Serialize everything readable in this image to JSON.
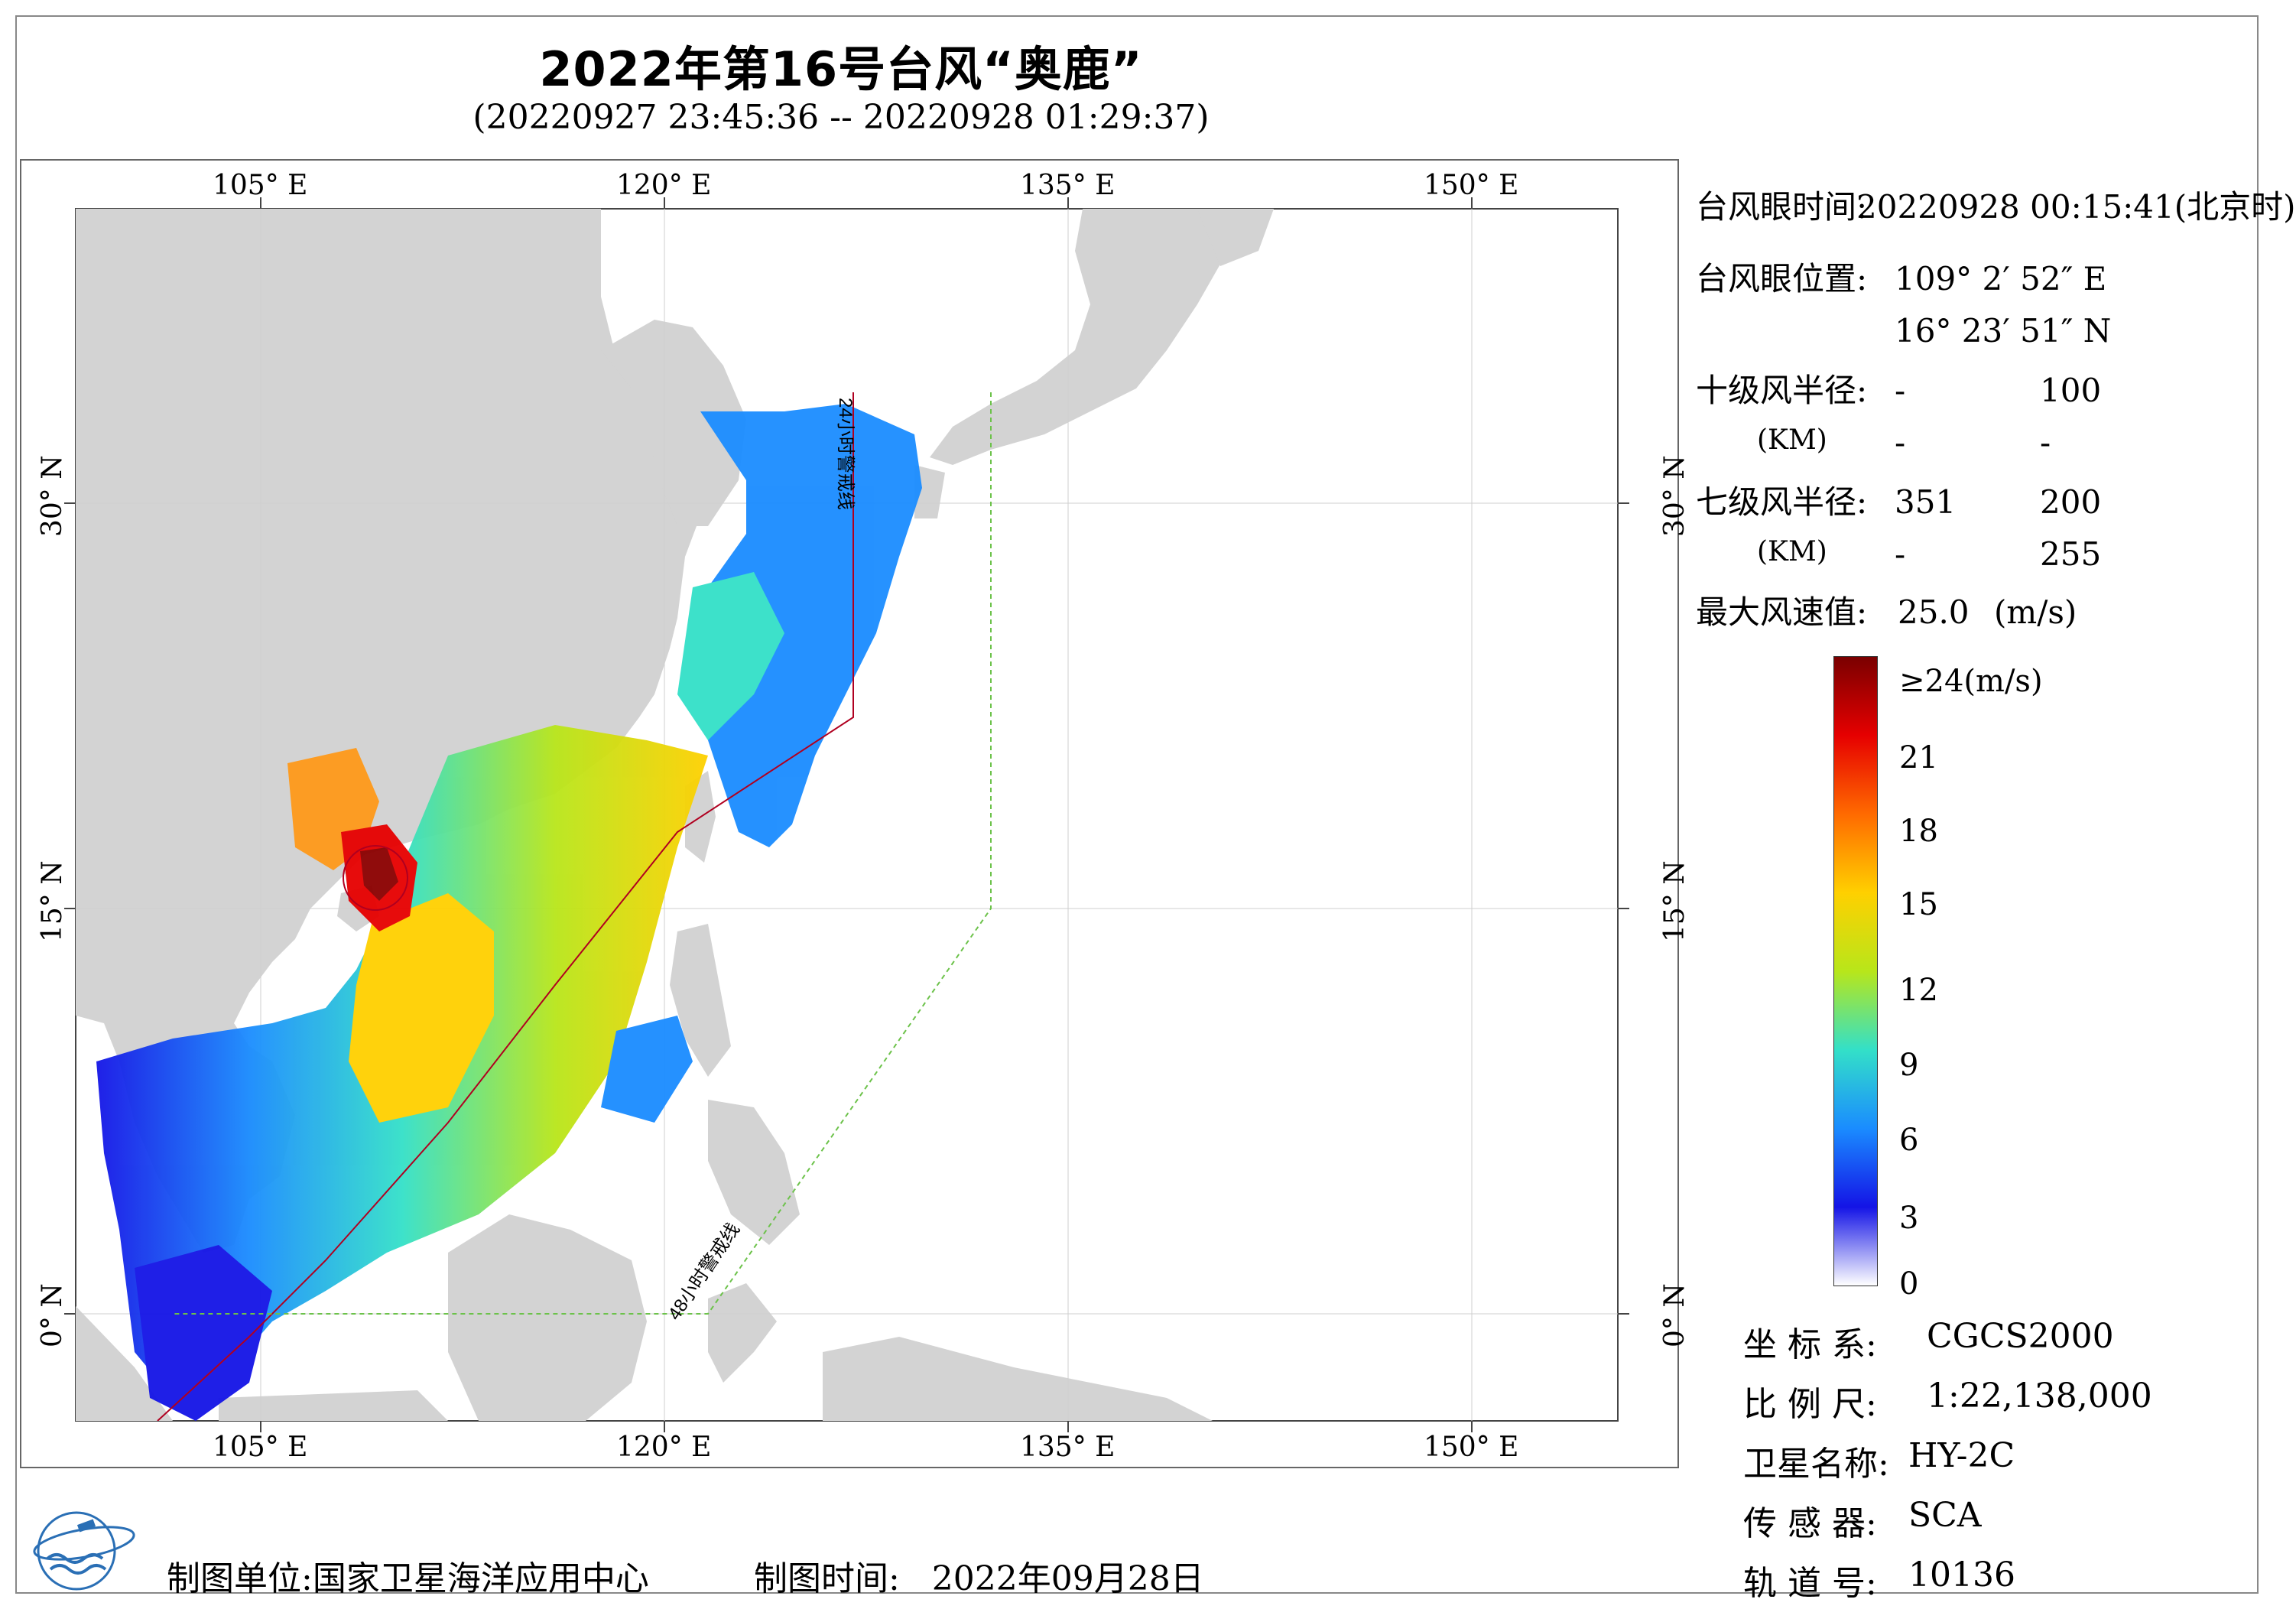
{
  "title": "2022年第16号台风“奥鹿”",
  "subtitle": "(20220927 23:45:36 -- 20220928 01:29:37)",
  "axes": {
    "lon_ticks": [
      "105° E",
      "120° E",
      "135° E",
      "150° E"
    ],
    "lat_ticks": [
      "30° N",
      "15° N",
      "0° N"
    ]
  },
  "warning_lines": {
    "line24": "24小时警戒线",
    "line48": "48小时警戒线"
  },
  "info": {
    "eye_time_label": "台风眼时间:",
    "eye_time_value": "20220928 00:15:41(北京时)",
    "eye_pos_label": "台风眼位置:",
    "eye_lon": "109° 2′ 52″ E",
    "eye_lat": "16° 23′ 51″ N",
    "r10_label": "十级风半径:",
    "r10_unit": "(KM)",
    "r10_row1_a": "-",
    "r10_row1_b": "100",
    "r10_row2_a": "-",
    "r10_row2_b": "-",
    "r7_label": "七级风半径:",
    "r7_unit": "(KM)",
    "r7_row1_a": "351",
    "r7_row1_b": "200",
    "r7_row2_a": "-",
    "r7_row2_b": "255",
    "max_label": "最大风速值:",
    "max_value": "25.0",
    "max_unit": "(m/s)"
  },
  "legend": {
    "labels": [
      "≥24(m/s)",
      "21",
      "18",
      "15",
      "12",
      "9",
      "6",
      "3",
      "0"
    ],
    "colors": [
      "#7a0000",
      "#e60000",
      "#ff6a00",
      "#ffd000",
      "#b8e61a",
      "#33e0c8",
      "#1a8cff",
      "#1414e6",
      "#ffffff"
    ]
  },
  "meta": {
    "crs_label": "坐 标 系:",
    "crs_value": "CGCS2000",
    "scale_label": "比 例 尺:",
    "scale_value": "1:22,138,000",
    "sat_label": "卫星名称:",
    "sat_value": "HY-2C",
    "sensor_label": "传 感 器:",
    "sensor_value": "SCA",
    "orbit_label": "轨 道 号:",
    "orbit_value": "10136"
  },
  "footer": {
    "unit_label": "制图单位:",
    "unit_value": "国家卫星海洋应用中心",
    "time_label": "制图时间:",
    "time_value": "2022年09月28日"
  },
  "colors": {
    "land": "#d3d3d3",
    "line24": "#b00020",
    "line48": "#6cc24a"
  }
}
